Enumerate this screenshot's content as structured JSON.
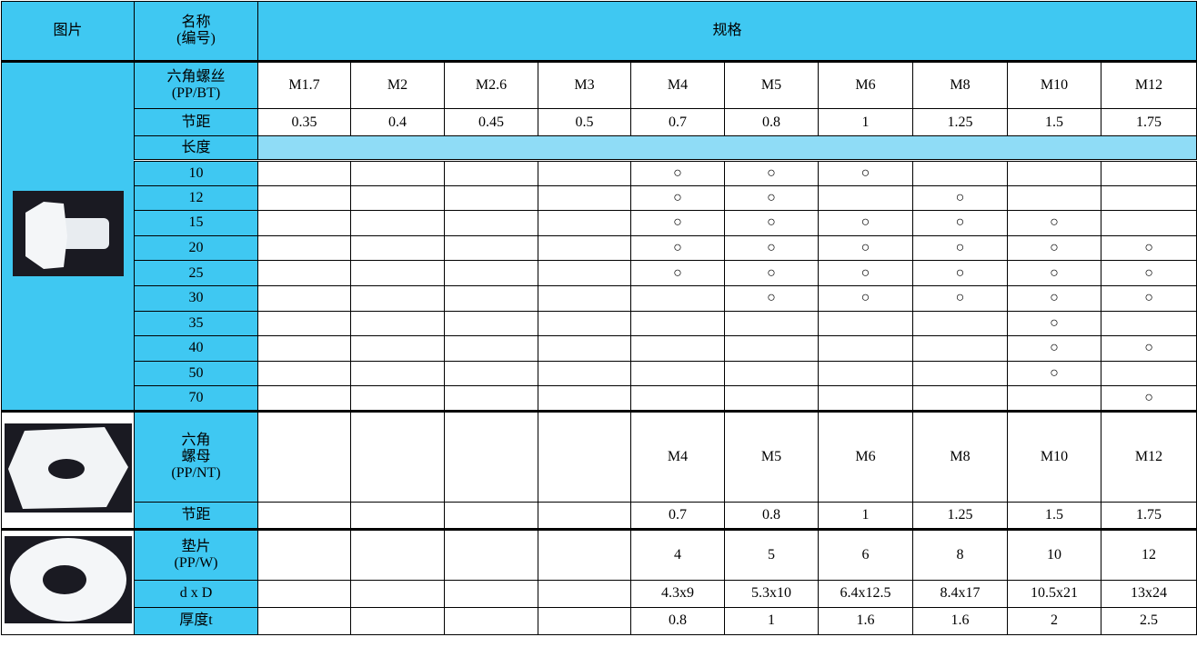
{
  "header": {
    "picture": "图片",
    "name": [
      "名称",
      "(编号)"
    ],
    "spec": "规格"
  },
  "sections": [
    {
      "name": [
        "六角螺丝",
        "(PP/BT)"
      ],
      "sizes": [
        "M1.7",
        "M2",
        "M2.6",
        "M3",
        "M4",
        "M5",
        "M6",
        "M8",
        "M10",
        "M12"
      ],
      "rows": [
        {
          "label": "节距",
          "values": [
            0.35,
            0.4,
            0.45,
            0.5,
            0.7,
            0.8,
            1,
            1.25,
            1.5,
            1.75
          ]
        }
      ],
      "length_label": "长度",
      "lengths": [
        {
          "length": 10,
          "marks": [
            null,
            null,
            null,
            null,
            "○",
            "○",
            "○",
            null,
            null,
            null
          ]
        },
        {
          "length": 12,
          "marks": [
            null,
            null,
            null,
            null,
            "○",
            "○",
            null,
            "○",
            null,
            null
          ]
        },
        {
          "length": 15,
          "marks": [
            null,
            null,
            null,
            null,
            "○",
            "○",
            "○",
            "○",
            "○",
            null
          ]
        },
        {
          "length": 20,
          "marks": [
            null,
            null,
            null,
            null,
            "○",
            "○",
            "○",
            "○",
            "○",
            "○"
          ]
        },
        {
          "length": 25,
          "marks": [
            null,
            null,
            null,
            null,
            "○",
            "○",
            "○",
            "○",
            "○",
            "○"
          ]
        },
        {
          "length": 30,
          "marks": [
            null,
            null,
            null,
            null,
            null,
            "○",
            "○",
            "○",
            "○",
            "○"
          ]
        },
        {
          "length": 35,
          "marks": [
            null,
            null,
            null,
            null,
            null,
            null,
            null,
            null,
            "○",
            null
          ]
        },
        {
          "length": 40,
          "marks": [
            null,
            null,
            null,
            null,
            null,
            null,
            null,
            null,
            "○",
            "○"
          ]
        },
        {
          "length": 50,
          "marks": [
            null,
            null,
            null,
            null,
            null,
            null,
            null,
            null,
            "○",
            null
          ]
        },
        {
          "length": 70,
          "marks": [
            null,
            null,
            null,
            null,
            null,
            null,
            null,
            null,
            null,
            "○"
          ]
        }
      ]
    },
    {
      "name": [
        "六角",
        "螺母",
        "(PP/NT)"
      ],
      "sizes": [
        null,
        null,
        null,
        null,
        "M4",
        "M5",
        "M6",
        "M8",
        "M10",
        "M12"
      ],
      "rows": [
        {
          "label": "节距",
          "values": [
            null,
            null,
            null,
            null,
            0.7,
            0.8,
            1,
            1.25,
            1.5,
            1.75
          ]
        }
      ]
    },
    {
      "name": [
        "垫片",
        "(PP/W)"
      ],
      "sizes": [
        null,
        null,
        null,
        null,
        4,
        5,
        6,
        8,
        10,
        12
      ],
      "rows": [
        {
          "label": "d x D",
          "values": [
            null,
            null,
            null,
            null,
            "4.3x9",
            "5.3x10",
            "6.4x12.5",
            "8.4x17",
            "10.5x21",
            "13x24"
          ]
        },
        {
          "label": "厚度t",
          "values": [
            null,
            null,
            null,
            null,
            0.8,
            1,
            1.6,
            1.6,
            2,
            2.5
          ]
        }
      ]
    }
  ]
}
